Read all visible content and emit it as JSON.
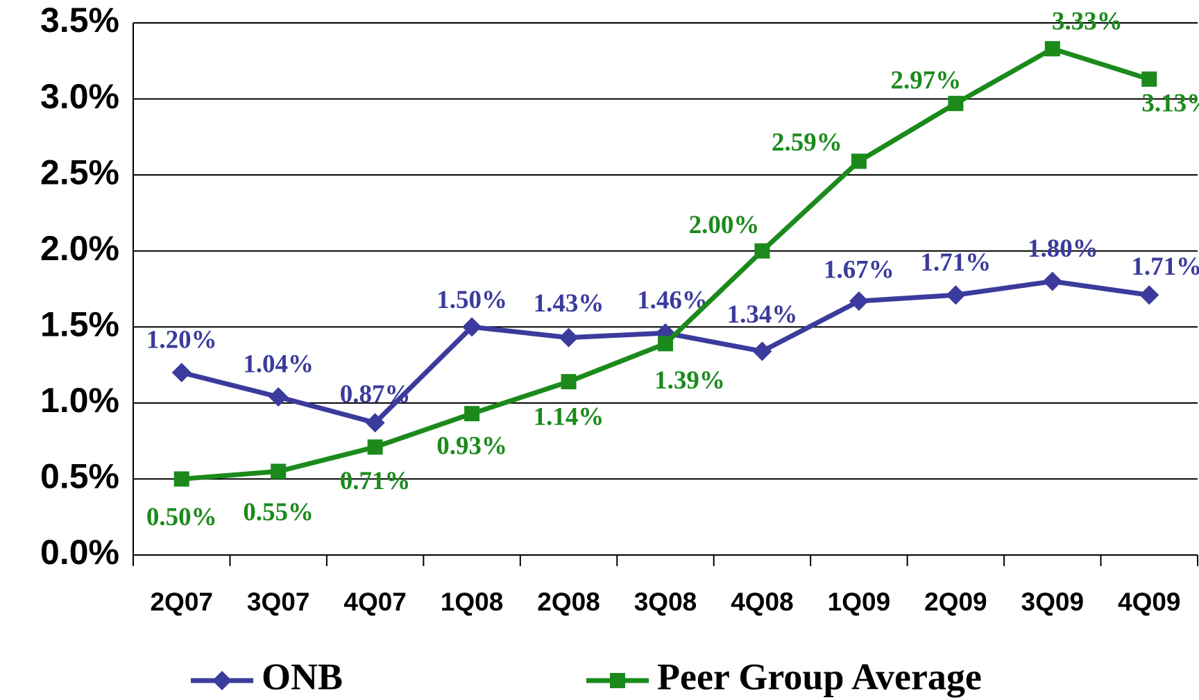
{
  "chart_data": {
    "type": "line",
    "categories": [
      "2Q07",
      "3Q07",
      "4Q07",
      "1Q08",
      "2Q08",
      "3Q08",
      "4Q08",
      "1Q09",
      "2Q09",
      "3Q09",
      "4Q09"
    ],
    "series": [
      {
        "name": "ONB",
        "color": "#3b3b9d",
        "marker": "diamond",
        "values": [
          1.2,
          1.04,
          0.87,
          1.5,
          1.43,
          1.46,
          1.34,
          1.67,
          1.71,
          1.8,
          1.71
        ],
        "value_labels": [
          "1.20%",
          "1.04%",
          "0.87%",
          "1.50%",
          "1.43%",
          "1.46%",
          "1.34%",
          "1.67%",
          "1.71%",
          "1.80%",
          "1.71%"
        ]
      },
      {
        "name": "Peer Group Average",
        "color": "#1b8a1b",
        "marker": "square",
        "values": [
          0.5,
          0.55,
          0.71,
          0.93,
          1.14,
          1.39,
          2.0,
          2.59,
          2.97,
          3.33,
          3.13
        ],
        "value_labels": [
          "0.50%",
          "0.55%",
          "0.71%",
          "0.93%",
          "1.14%",
          "1.39%",
          "2.00%",
          "2.59%",
          "2.97%",
          "3.33%",
          "3.13%"
        ]
      }
    ],
    "ylim": [
      0,
      3.5
    ],
    "yticks": [
      {
        "value": 0,
        "label": "0.0%"
      },
      {
        "value": 0.5,
        "label": "0.5%"
      },
      {
        "value": 1.0,
        "label": "1.0%"
      },
      {
        "value": 1.5,
        "label": "1.5%"
      },
      {
        "value": 2.0,
        "label": "2.0%"
      },
      {
        "value": 2.5,
        "label": "2.5%"
      },
      {
        "value": 3.0,
        "label": "3.0%"
      },
      {
        "value": 3.5,
        "label": "3.5%"
      }
    ],
    "grid": true
  }
}
